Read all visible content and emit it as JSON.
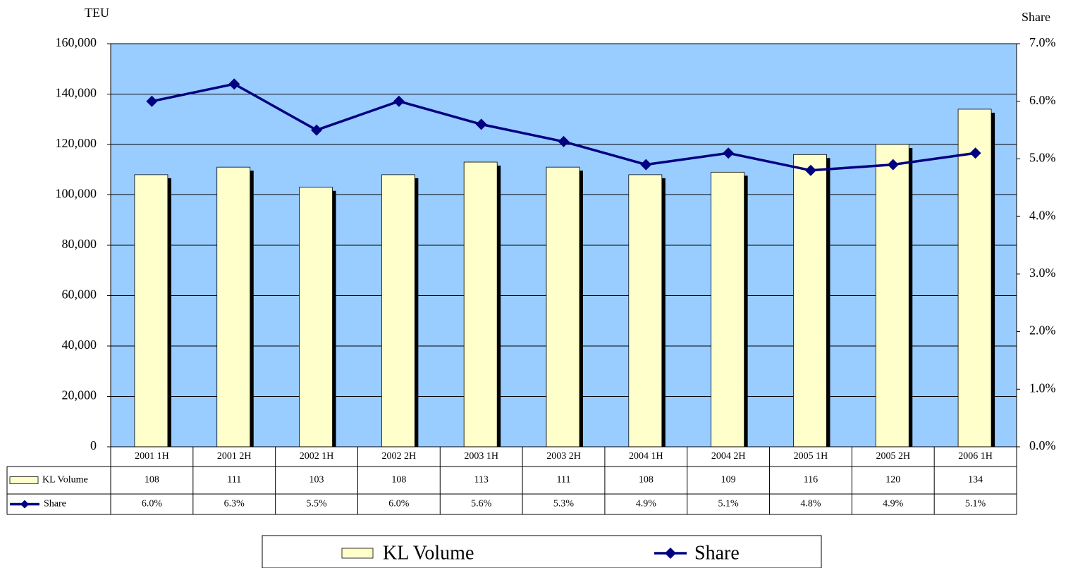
{
  "chart_data": {
    "type": "bar",
    "y_label": "TEU",
    "y2_label": "Share",
    "categories": [
      "2001 1H",
      "2001 2H",
      "2002 1H",
      "2002 2H",
      "2003 1H",
      "2003 2H",
      "2004 1H",
      "2004 2H",
      "2005 1H",
      "2005 2H",
      "2006 1H"
    ],
    "series": [
      {
        "name": "KL Volume",
        "type": "bar",
        "color": "#ffffcc",
        "values": [
          108000,
          111000,
          103000,
          108000,
          113000,
          111000,
          108000,
          109000,
          116000,
          120000,
          134000
        ],
        "value_labels": [
          "108",
          "111",
          "103",
          "108",
          "113",
          "111",
          "108",
          "109",
          "116",
          "120",
          "134"
        ]
      },
      {
        "name": "Share",
        "type": "line",
        "axis": "y2",
        "color": "#000080",
        "values": [
          6.0,
          6.3,
          5.5,
          6.0,
          5.6,
          5.3,
          4.9,
          5.1,
          4.8,
          4.9,
          5.1
        ],
        "value_labels": [
          "6.0%",
          "6.3%",
          "5.5%",
          "6.0%",
          "5.6%",
          "5.3%",
          "4.9%",
          "5.1%",
          "4.8%",
          "4.9%",
          "5.1%"
        ]
      }
    ],
    "ylim": [
      0,
      160000
    ],
    "yticks": [
      0,
      {
        "value": 20000,
        "label": "20,000"
      },
      {
        "value": 40000,
        "label": "40,000"
      },
      {
        "value": 60000,
        "label": "60,000"
      },
      {
        "value": 80000,
        "label": "80,000"
      },
      {
        "value": 100000,
        "label": "100,000"
      },
      {
        "value": 120000,
        "label": "120,000"
      },
      {
        "value": 140000,
        "label": "140,000"
      },
      {
        "value": 160000,
        "label": "160,000"
      }
    ],
    "y2lim": [
      0,
      7
    ],
    "y2ticks": [
      {
        "value": 0,
        "label": "0.0%"
      },
      {
        "value": 1,
        "label": "1.0%"
      },
      {
        "value": 2,
        "label": "2.0%"
      },
      {
        "value": 3,
        "label": "3.0%"
      },
      {
        "value": 4,
        "label": "4.0%"
      },
      {
        "value": 5,
        "label": "5.0%"
      },
      {
        "value": 6,
        "label": "6.0%"
      },
      {
        "value": 7,
        "label": "7.0%"
      }
    ],
    "grid": true,
    "plot_background": "#99ccff",
    "legend": "bottom"
  }
}
